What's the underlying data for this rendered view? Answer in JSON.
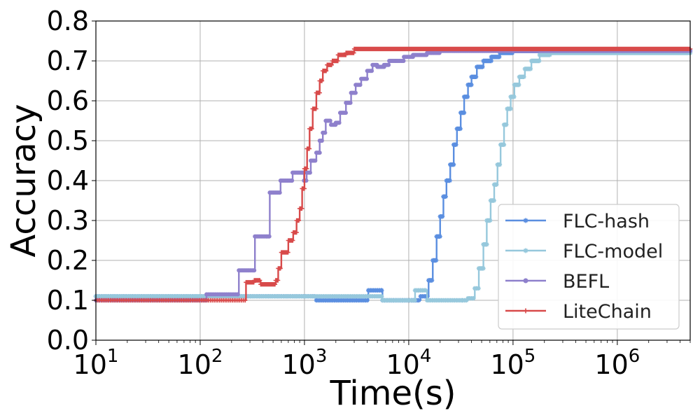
{
  "chart_data": {
    "type": "line",
    "xlabel": "Time(s)",
    "ylabel": "Accuracy",
    "xscale": "log",
    "xlim": [
      10,
      5000000
    ],
    "ylim": [
      0,
      0.8
    ],
    "grid": true,
    "legend_position": "lower-right",
    "x_tick_labels": [
      {
        "value": 10,
        "base": "10",
        "exp": "1"
      },
      {
        "value": 100,
        "base": "10",
        "exp": "2"
      },
      {
        "value": 1000,
        "base": "10",
        "exp": "3"
      },
      {
        "value": 10000,
        "base": "10",
        "exp": "4"
      },
      {
        "value": 100000,
        "base": "10",
        "exp": "5"
      },
      {
        "value": 1000000,
        "base": "10",
        "exp": "6"
      }
    ],
    "y_tick_labels": [
      "0.0",
      "0.1",
      "0.2",
      "0.3",
      "0.4",
      "0.5",
      "0.6",
      "0.7",
      "0.8"
    ],
    "series": [
      {
        "name": "FLC-hash",
        "color": "#5a8ee0",
        "marker": "star",
        "points": [
          [
            10,
            0.11
          ],
          [
            1200,
            0.11
          ],
          [
            1300,
            0.1
          ],
          [
            4000,
            0.1
          ],
          [
            4100,
            0.125
          ],
          [
            5500,
            0.125
          ],
          [
            5600,
            0.1
          ],
          [
            12000,
            0.1
          ],
          [
            13000,
            0.11
          ],
          [
            14500,
            0.11
          ],
          [
            15500,
            0.15
          ],
          [
            17000,
            0.2
          ],
          [
            18500,
            0.26
          ],
          [
            20000,
            0.31
          ],
          [
            21500,
            0.36
          ],
          [
            23000,
            0.4
          ],
          [
            25000,
            0.44
          ],
          [
            27000,
            0.49
          ],
          [
            29000,
            0.53
          ],
          [
            31500,
            0.57
          ],
          [
            34000,
            0.61
          ],
          [
            37000,
            0.64
          ],
          [
            40000,
            0.66
          ],
          [
            45000,
            0.685
          ],
          [
            52000,
            0.7
          ],
          [
            62000,
            0.71
          ],
          [
            75000,
            0.72
          ],
          [
            100000,
            0.725
          ],
          [
            5000000,
            0.725
          ]
        ]
      },
      {
        "name": "FLC-model",
        "color": "#96c8dc",
        "marker": "star",
        "points": [
          [
            10,
            0.11
          ],
          [
            5500,
            0.11
          ],
          [
            5600,
            0.1
          ],
          [
            11000,
            0.1
          ],
          [
            11500,
            0.125
          ],
          [
            14500,
            0.125
          ],
          [
            15000,
            0.1
          ],
          [
            33000,
            0.1
          ],
          [
            37000,
            0.105
          ],
          [
            43000,
            0.13
          ],
          [
            47000,
            0.18
          ],
          [
            52000,
            0.24
          ],
          [
            56000,
            0.3
          ],
          [
            61000,
            0.35
          ],
          [
            66000,
            0.39
          ],
          [
            71000,
            0.44
          ],
          [
            76000,
            0.49
          ],
          [
            82000,
            0.54
          ],
          [
            88000,
            0.58
          ],
          [
            95000,
            0.61
          ],
          [
            103000,
            0.64
          ],
          [
            115000,
            0.66
          ],
          [
            130000,
            0.68
          ],
          [
            150000,
            0.7
          ],
          [
            180000,
            0.715
          ],
          [
            230000,
            0.72
          ],
          [
            5000000,
            0.72
          ]
        ]
      },
      {
        "name": "BEFL",
        "color": "#8e80cc",
        "marker": "circle",
        "points": [
          [
            10,
            0.1
          ],
          [
            110,
            0.1
          ],
          [
            115,
            0.115
          ],
          [
            230,
            0.115
          ],
          [
            235,
            0.175
          ],
          [
            330,
            0.175
          ],
          [
            335,
            0.26
          ],
          [
            460,
            0.26
          ],
          [
            465,
            0.37
          ],
          [
            580,
            0.37
          ],
          [
            590,
            0.4
          ],
          [
            760,
            0.4
          ],
          [
            770,
            0.42
          ],
          [
            970,
            0.42
          ],
          [
            990,
            0.4
          ],
          [
            1050,
            0.42
          ],
          [
            1150,
            0.45
          ],
          [
            1300,
            0.47
          ],
          [
            1400,
            0.5
          ],
          [
            1500,
            0.52
          ],
          [
            1600,
            0.55
          ],
          [
            1800,
            0.54
          ],
          [
            2000,
            0.545
          ],
          [
            2200,
            0.57
          ],
          [
            2500,
            0.595
          ],
          [
            2800,
            0.62
          ],
          [
            3100,
            0.64
          ],
          [
            3500,
            0.655
          ],
          [
            4000,
            0.675
          ],
          [
            4500,
            0.69
          ],
          [
            5000,
            0.685
          ],
          [
            5800,
            0.69
          ],
          [
            6500,
            0.7
          ],
          [
            7500,
            0.7
          ],
          [
            9000,
            0.71
          ],
          [
            11000,
            0.715
          ],
          [
            15000,
            0.72
          ],
          [
            20000,
            0.725
          ],
          [
            5000000,
            0.725
          ]
        ]
      },
      {
        "name": "LiteChain",
        "color": "#d84a4a",
        "marker": "plus",
        "points": [
          [
            10,
            0.1
          ],
          [
            270,
            0.1
          ],
          [
            275,
            0.145
          ],
          [
            330,
            0.15
          ],
          [
            380,
            0.14
          ],
          [
            450,
            0.14
          ],
          [
            530,
            0.15
          ],
          [
            560,
            0.18
          ],
          [
            600,
            0.22
          ],
          [
            700,
            0.25
          ],
          [
            780,
            0.27
          ],
          [
            840,
            0.3
          ],
          [
            900,
            0.33
          ],
          [
            950,
            0.38
          ],
          [
            1000,
            0.43
          ],
          [
            1060,
            0.48
          ],
          [
            1120,
            0.53
          ],
          [
            1200,
            0.58
          ],
          [
            1300,
            0.62
          ],
          [
            1400,
            0.65
          ],
          [
            1500,
            0.675
          ],
          [
            1650,
            0.69
          ],
          [
            1850,
            0.7
          ],
          [
            2100,
            0.715
          ],
          [
            2500,
            0.72
          ],
          [
            3000,
            0.73
          ],
          [
            5000000,
            0.73
          ]
        ]
      }
    ]
  }
}
